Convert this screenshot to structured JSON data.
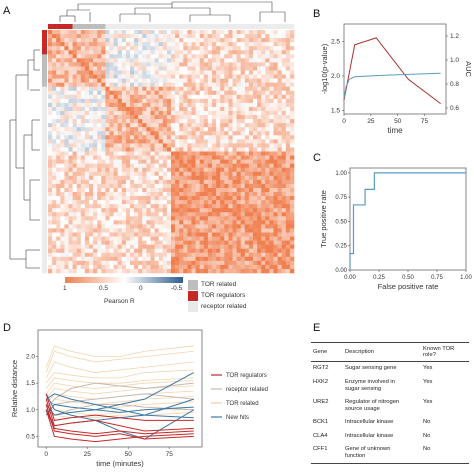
{
  "panels": {
    "A": "A",
    "B": "B",
    "C": "C",
    "D": "D",
    "E": "E"
  },
  "colors": {
    "positive": "#f07f4f",
    "neutral": "#ffffff",
    "negative": "#2f5f8f",
    "tor_related": "#bdbdbd",
    "tor_regulators": "#c62828",
    "receptor_related": "#e8e8e8",
    "b_red": "#a83232",
    "b_blue": "#5b9bc0",
    "c_blue": "#5b9bc0"
  },
  "heatmap_panel": {
    "colorbar": {
      "tick_labels": [
        "1",
        "0.5",
        "0",
        "-0.5"
      ],
      "title": "Pearson R"
    },
    "legend": [
      {
        "label": "TOR related",
        "color": "#bdbdbd"
      },
      {
        "label": "TOR regulators",
        "color": "#c62828"
      },
      {
        "label": "receptor related",
        "color": "#e8e8e8"
      }
    ]
  },
  "chart_data": [
    {
      "panel": "B",
      "type": "line",
      "xlabel": "time",
      "ylabel_left": "-log10(p-value)",
      "ylabel_right": "AUC",
      "xlim": [
        0,
        95
      ],
      "xticks": [
        "0",
        "25",
        "50",
        "75"
      ],
      "ylim_left": [
        1.45,
        2.75
      ],
      "yticks_left": [
        "1.5",
        "2.0",
        "2.5"
      ],
      "ylim_right": [
        0.55,
        1.3
      ],
      "yticks_right": [
        "0.6",
        "0.8",
        "1.0",
        "1.2"
      ],
      "series": [
        {
          "axis": "left",
          "color": "#a83232",
          "x": [
            0,
            10,
            30,
            60,
            90
          ],
          "y": [
            1.65,
            2.45,
            2.55,
            1.95,
            1.6
          ]
        },
        {
          "axis": "right",
          "color": "#5b9bc0",
          "x": [
            0,
            2,
            5,
            10,
            30,
            60,
            90
          ],
          "y": [
            0.68,
            0.78,
            0.84,
            0.86,
            0.87,
            0.88,
            0.89
          ]
        }
      ]
    },
    {
      "panel": "C",
      "type": "line",
      "xlabel": "False positive rate",
      "ylabel": "True positive rate",
      "xlim": [
        0,
        1
      ],
      "ylim": [
        0,
        1.05
      ],
      "xticks": [
        "0.00",
        "0.25",
        "0.50",
        "0.75",
        "1.00"
      ],
      "yticks": [
        "0.00",
        "0.25",
        "0.50",
        "0.75",
        "1.00"
      ],
      "series": [
        {
          "color": "#5b9bc0",
          "x": [
            0,
            0,
            0.03,
            0.03,
            0.13,
            0.13,
            0.17,
            0.17,
            0.21,
            0.21,
            1.0
          ],
          "y": [
            0,
            0.17,
            0.17,
            0.67,
            0.67,
            0.83,
            0.83,
            0.83,
            0.83,
            1.0,
            1.0
          ]
        }
      ]
    },
    {
      "panel": "D",
      "type": "line",
      "xlabel": "time (minutes)",
      "ylabel": "Relative distance",
      "xlim": [
        -5,
        95
      ],
      "ylim": [
        0.3,
        2.5
      ],
      "xticks": [
        "0",
        "25",
        "50",
        "75"
      ],
      "yticks": [
        "0.5",
        "1.0",
        "1.5",
        "2.0"
      ],
      "x": [
        0,
        5,
        15,
        30,
        45,
        60,
        90
      ],
      "legend": [
        {
          "label": "TOR regulators",
          "color": "#c62828"
        },
        {
          "label": "receptor related",
          "color": "#c8b8b0"
        },
        {
          "label": "TOR related",
          "color": "#f2cfa5"
        },
        {
          "label": "New hits",
          "color": "#3a79a8"
        }
      ],
      "series": [
        {
          "group": "TOR regulators",
          "y": [
            1.0,
            0.5,
            0.45,
            0.4,
            0.45,
            0.5,
            0.55
          ]
        },
        {
          "group": "TOR regulators",
          "y": [
            1.1,
            0.6,
            0.55,
            0.5,
            0.55,
            0.45,
            0.5
          ]
        },
        {
          "group": "TOR regulators",
          "y": [
            1.2,
            0.7,
            0.75,
            0.8,
            0.7,
            0.6,
            0.65
          ]
        },
        {
          "group": "TOR regulators",
          "y": [
            1.3,
            0.8,
            0.85,
            0.9,
            0.85,
            0.8,
            0.8
          ]
        },
        {
          "group": "TOR regulators",
          "y": [
            1.0,
            0.65,
            0.6,
            0.55,
            0.6,
            0.55,
            0.6
          ]
        },
        {
          "group": "receptor related",
          "y": [
            1.0,
            1.2,
            1.4,
            1.5,
            1.45,
            1.4,
            1.5
          ]
        },
        {
          "group": "receptor related",
          "y": [
            1.0,
            0.9,
            1.0,
            1.1,
            1.1,
            1.05,
            1.0
          ]
        },
        {
          "group": "receptor related",
          "y": [
            1.2,
            1.1,
            1.15,
            1.2,
            1.25,
            1.3,
            1.2
          ]
        },
        {
          "group": "TOR related",
          "y": [
            1.6,
            1.9,
            1.8,
            1.7,
            1.75,
            1.8,
            1.9
          ]
        },
        {
          "group": "TOR related",
          "y": [
            1.5,
            1.7,
            1.65,
            1.6,
            1.6,
            1.7,
            1.75
          ]
        },
        {
          "group": "TOR related",
          "y": [
            1.4,
            1.6,
            1.55,
            1.5,
            1.5,
            1.55,
            1.6
          ]
        },
        {
          "group": "TOR related",
          "y": [
            1.3,
            1.5,
            1.45,
            1.4,
            1.45,
            1.5,
            1.55
          ]
        },
        {
          "group": "TOR related",
          "y": [
            1.2,
            1.4,
            1.35,
            1.3,
            1.35,
            1.4,
            1.45
          ]
        },
        {
          "group": "TOR related",
          "y": [
            1.1,
            1.3,
            1.25,
            1.2,
            1.25,
            1.3,
            1.35
          ]
        },
        {
          "group": "TOR related",
          "y": [
            1.0,
            1.2,
            1.15,
            1.1,
            1.15,
            1.2,
            1.25
          ]
        },
        {
          "group": "TOR related",
          "y": [
            0.9,
            1.1,
            1.05,
            1.0,
            1.05,
            1.1,
            1.15
          ]
        },
        {
          "group": "TOR related",
          "y": [
            1.7,
            2.1,
            2.0,
            1.9,
            1.95,
            2.0,
            2.1
          ]
        },
        {
          "group": "TOR related",
          "y": [
            1.8,
            2.2,
            2.1,
            2.0,
            2.0,
            2.1,
            2.2
          ]
        },
        {
          "group": "TOR related",
          "y": [
            1.0,
            1.0,
            0.95,
            0.9,
            0.95,
            1.0,
            1.0
          ]
        },
        {
          "group": "TOR related",
          "y": [
            1.1,
            0.9,
            0.85,
            0.85,
            0.9,
            0.9,
            0.95
          ]
        },
        {
          "group": "New hits",
          "y": [
            1.3,
            1.0,
            0.9,
            0.8,
            0.6,
            0.45,
            1.0
          ]
        },
        {
          "group": "New hits",
          "y": [
            1.1,
            0.9,
            0.95,
            1.0,
            1.1,
            1.2,
            1.7
          ]
        },
        {
          "group": "New hits",
          "y": [
            1.0,
            0.7,
            0.75,
            0.8,
            0.85,
            0.9,
            1.2
          ]
        },
        {
          "group": "New hits",
          "y": [
            0.9,
            1.1,
            1.05,
            1.0,
            0.95,
            1.0,
            1.05
          ]
        },
        {
          "group": "New hits",
          "y": [
            1.2,
            1.3,
            1.2,
            1.1,
            1.0,
            0.9,
            0.85
          ]
        }
      ]
    }
  ],
  "table": {
    "headers": [
      "Gene",
      "Description",
      "Known TOR role?"
    ],
    "rows": [
      {
        "gene": "RGT2",
        "desc1": "Sugar sensing gene",
        "desc2": "",
        "known": "Yes"
      },
      {
        "gene": "HXK2",
        "desc1": "Enzyme involved in",
        "desc2": "sugar sensing",
        "known": "Yes"
      },
      {
        "gene": "URE2",
        "desc1": "Regulator of nitrogen",
        "desc2": "source usage",
        "known": "Yes"
      },
      {
        "gene": "BCK1",
        "desc1": "Intracellular kinase",
        "desc2": "",
        "known": "No"
      },
      {
        "gene": "CLA4",
        "desc1": "Intracellular kinase",
        "desc2": "",
        "known": "No"
      },
      {
        "gene": "CFF1",
        "desc1": "Gene of unknown",
        "desc2": "function",
        "known": "No"
      }
    ]
  }
}
